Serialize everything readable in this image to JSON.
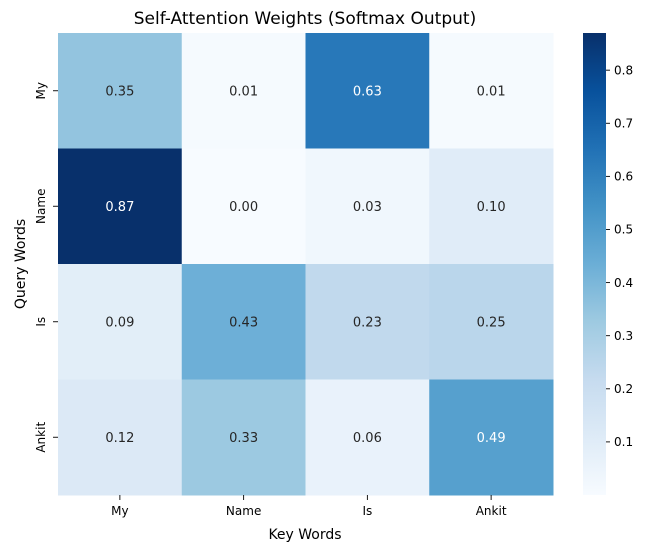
{
  "chart_data": {
    "type": "heatmap",
    "title": "Self-Attention Weights (Softmax Output)",
    "xlabel": "Key Words",
    "ylabel": "Query Words",
    "x_categories": [
      "My",
      "Name",
      "Is",
      "Ankit"
    ],
    "y_categories": [
      "My",
      "Name",
      "Is",
      "Ankit"
    ],
    "values": [
      [
        0.35,
        0.01,
        0.63,
        0.01
      ],
      [
        0.87,
        0.0,
        0.03,
        0.1
      ],
      [
        0.09,
        0.43,
        0.23,
        0.25
      ],
      [
        0.12,
        0.33,
        0.06,
        0.49
      ]
    ],
    "value_format": "0.00",
    "colormap": "Blues",
    "colormap_stops": [
      "#f7fbff",
      "#deebf7",
      "#c6dbef",
      "#9ecae1",
      "#6baed6",
      "#4292c6",
      "#2171b5",
      "#08519c",
      "#08306b"
    ],
    "colorbar": {
      "range": [
        0.0,
        0.87
      ],
      "ticks": [
        "0.1",
        "0.2",
        "0.3",
        "0.4",
        "0.5",
        "0.6",
        "0.7",
        "0.8"
      ],
      "tick_values": [
        0.1,
        0.2,
        0.3,
        0.4,
        0.5,
        0.6,
        0.7,
        0.8
      ]
    },
    "annotation_colors": {
      "dark": "#262626",
      "light": "#ffffff"
    }
  }
}
